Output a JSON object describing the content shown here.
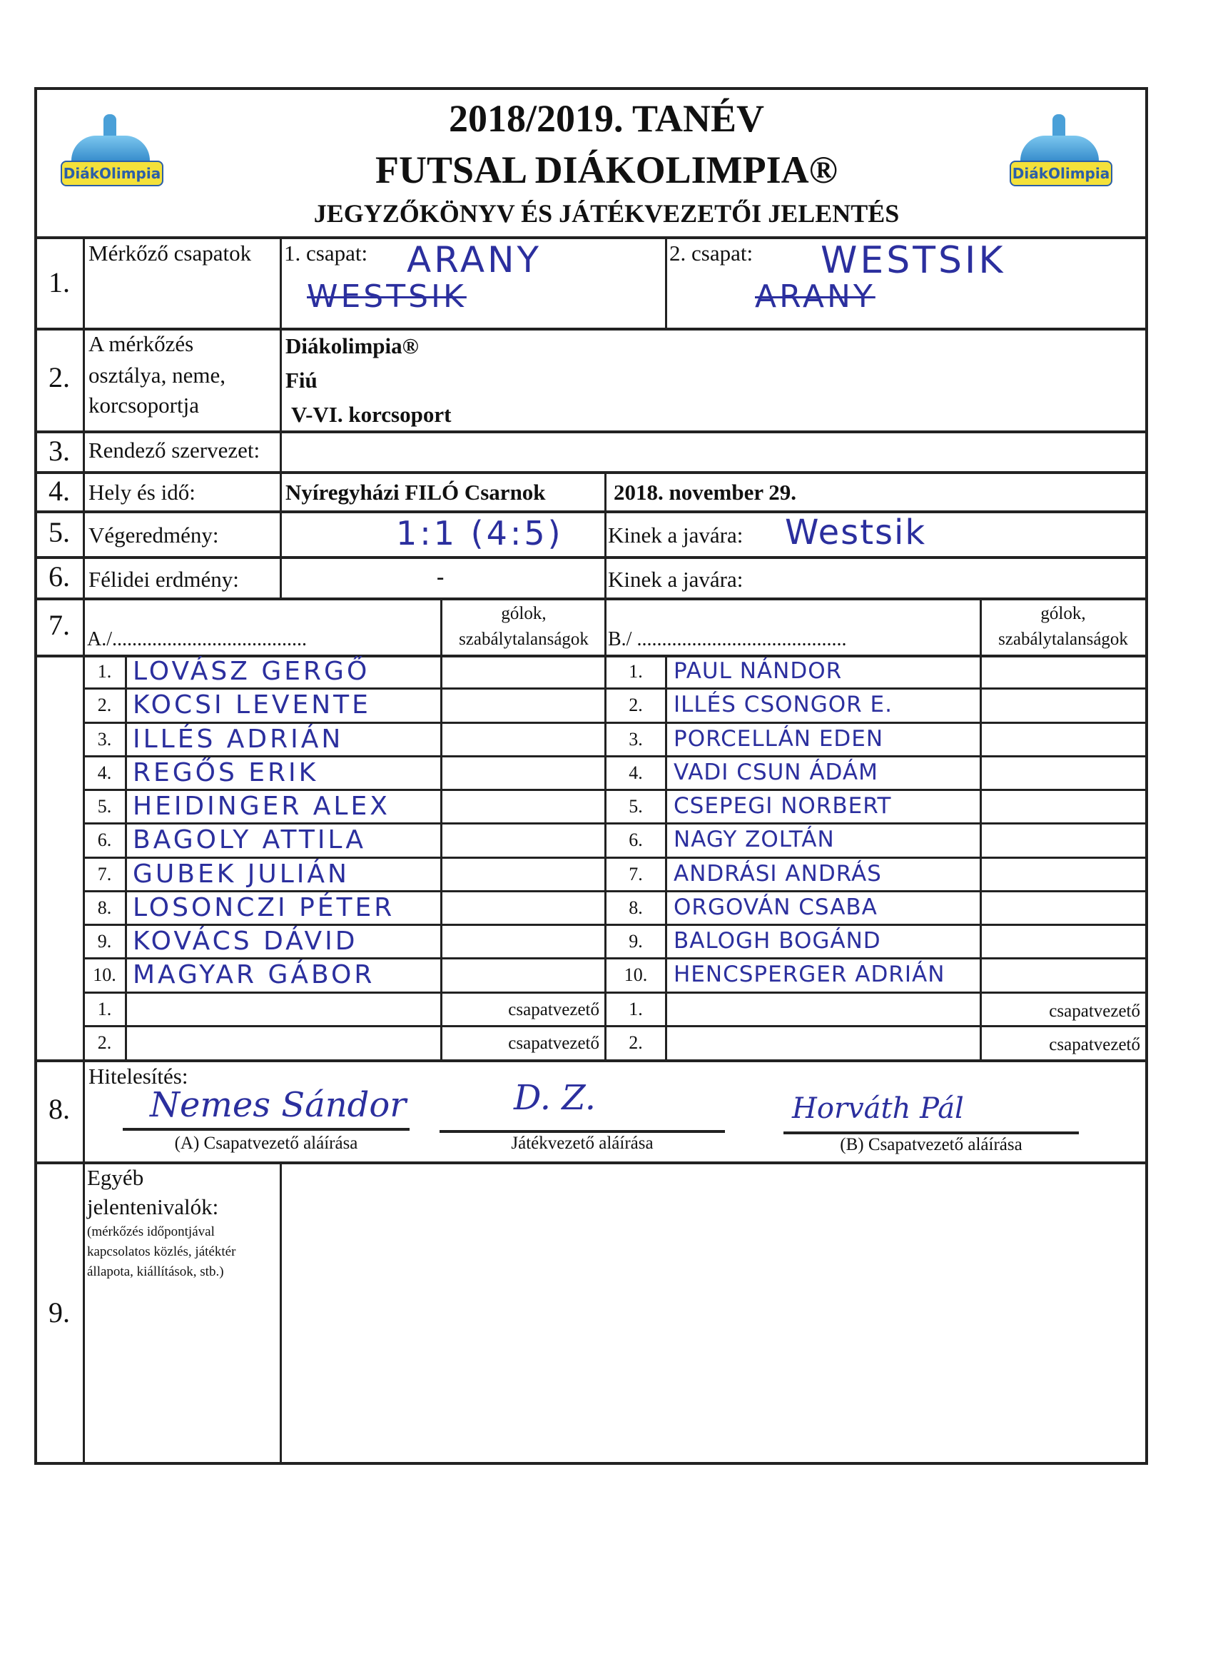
{
  "header": {
    "line1": "2018/2019. TANÉV",
    "line2": "FUTSAL DIÁKOLIMPIA®",
    "line3": "JEGYZŐKÖNYV ÉS JÁTÉKVEZETŐI JELENTÉS",
    "logo_text": "DiákOlimpia"
  },
  "sections": {
    "s1": {
      "number": "1.",
      "label": "Mérkőző csapatok",
      "team1_label": "1. csapat:",
      "team1_value": "ARANY",
      "team1_struck": "WESTSIK",
      "team2_label": "2. csapat:",
      "team2_value": "WESTSIK",
      "team2_struck": "ARANY"
    },
    "s2": {
      "number": "2.",
      "label_lines": [
        "A mérkőzés",
        "osztálya, neme,",
        "korcsoportja"
      ],
      "values": [
        "Diákolimpia®",
        "Fiú",
        "V-VI. korcsoport"
      ]
    },
    "s3": {
      "number": "3.",
      "label": "Rendező szervezet:"
    },
    "s4": {
      "number": "4.",
      "label": "Hely és idő:",
      "place": "Nyíregyházi FILÓ Csarnok",
      "date": "2018. november 29."
    },
    "s5": {
      "number": "5.",
      "label": "Végeredmény:",
      "score": "1:1 (4:5)",
      "winner_label": "Kinek a javára:",
      "winner": "Westsik"
    },
    "s6": {
      "number": "6.",
      "label": "Félidei erdmény:",
      "score": "-",
      "winner_label": "Kinek a javára:"
    },
    "s7": {
      "number": "7.",
      "team_a_label": "A./.......................................",
      "team_b_label": "B./ ..........................................",
      "goals_header_1": "gólok,",
      "goals_header_2": "szabálytalanságok"
    },
    "s8": {
      "number": "8.",
      "label": "Hitelesítés:",
      "sig_a_label": "(A) Csapatvezető aláírása",
      "sig_ref_label": "Játékvezető aláírása",
      "sig_b_label": "(B) Csapatvezető aláírása",
      "sig_a": "Nemes Sándor",
      "sig_ref": "D. Z.",
      "sig_b": "Horváth Pál"
    },
    "s9": {
      "number": "9.",
      "label_lines": [
        "Egyéb",
        "jelentenivalók:"
      ],
      "note_lines": [
        "(mérkőzés időpontjával",
        "kapcsolatos közlés, játéktér",
        "állapota, kiállítások, stb.)"
      ]
    }
  },
  "team_a_players": [
    {
      "no": "1.",
      "name": "LOVÁSZ GERGŐ"
    },
    {
      "no": "2.",
      "name": "KOCSI LEVENTE"
    },
    {
      "no": "3.",
      "name": "ILLÉS ADRIÁN"
    },
    {
      "no": "4.",
      "name": "REGŐS ERIK"
    },
    {
      "no": "5.",
      "name": "HEIDINGER ALEX"
    },
    {
      "no": "6.",
      "name": "BAGOLY ATTILA"
    },
    {
      "no": "7.",
      "name": "GUBEK JULIÁN"
    },
    {
      "no": "8.",
      "name": "LOSONCZI PÉTER"
    },
    {
      "no": "9.",
      "name": "KOVÁCS DÁVID"
    },
    {
      "no": "10.",
      "name": "MAGYAR GÁBOR"
    }
  ],
  "team_b_players": [
    {
      "no": "1.",
      "name": "PAUL NÁNDOR"
    },
    {
      "no": "2.",
      "name": "ILLÉS CSONGOR E."
    },
    {
      "no": "3.",
      "name": "PORCELLÁN EDEN"
    },
    {
      "no": "4.",
      "name": "VADI CSUN ÁDÁM"
    },
    {
      "no": "5.",
      "name": "CSEPEGI NORBERT"
    },
    {
      "no": "6.",
      "name": "NAGY ZOLTÁN"
    },
    {
      "no": "7.",
      "name": "ANDRÁSI ANDRÁS"
    },
    {
      "no": "8.",
      "name": "ORGOVÁN CSABA"
    },
    {
      "no": "9.",
      "name": "BALOGH BOGÁND"
    },
    {
      "no": "10.",
      "name": "HENCSPERGER ADRIÁN"
    }
  ],
  "team_a_leaders": [
    {
      "no": "1.",
      "role": "csapatvezető"
    },
    {
      "no": "2.",
      "role": "csapatvezető"
    }
  ],
  "team_b_leaders": [
    {
      "no": "1.",
      "role": "csapatvezető"
    },
    {
      "no": "2.",
      "role": "csapatvezető"
    }
  ],
  "colors": {
    "ink": "#2b2f9e",
    "lines": "#222222"
  }
}
